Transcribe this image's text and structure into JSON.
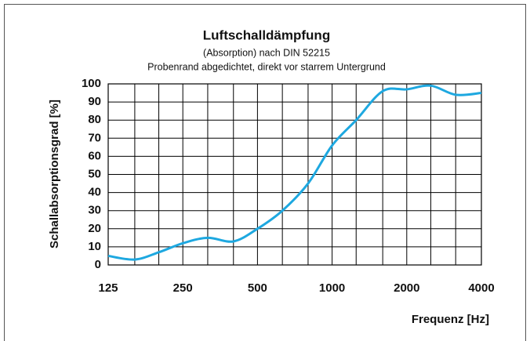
{
  "chart_data": {
    "type": "line",
    "title": "Luftschalldämpfung",
    "subtitle": [
      "(Absorption) nach DIN 52215",
      "Probenrand abgedichtet, direkt vor starrem Untergrund"
    ],
    "xlabel": "Frequenz [Hz]",
    "ylabel": "Schallabsorptionsgrad [%]",
    "x": [
      125,
      160,
      200,
      250,
      315,
      400,
      500,
      630,
      800,
      1000,
      1250,
      1600,
      2000,
      2500,
      3150,
      4000
    ],
    "series": [
      {
        "color": "#1ea8e0",
        "values": [
          5,
          3,
          7,
          12,
          15,
          13,
          20,
          30,
          45,
          66,
          80,
          96,
          97,
          99,
          94,
          95
        ]
      }
    ],
    "xlim": [
      125,
      4000
    ],
    "xscale": "log",
    "xticks": [
      125,
      250,
      500,
      1000,
      2000,
      4000
    ],
    "xgrid": [
      125,
      160,
      200,
      250,
      315,
      400,
      500,
      630,
      800,
      1000,
      1250,
      1600,
      2000,
      2500,
      3150,
      4000
    ],
    "ylim": [
      0,
      100
    ],
    "yticks": [
      0,
      10,
      20,
      30,
      40,
      50,
      60,
      70,
      80,
      90,
      100
    ],
    "grid": true
  }
}
